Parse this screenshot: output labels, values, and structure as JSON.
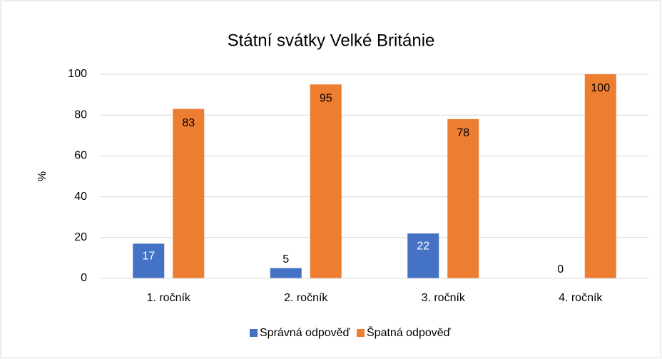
{
  "chart_data": {
    "type": "bar",
    "title": "Státní svátky Velké Británie",
    "y_label": "%",
    "categories": [
      "1. ročník",
      "2. ročník",
      "3. ročník",
      "4. ročník"
    ],
    "series": [
      {
        "name": "Správná odpověď",
        "color": "#4472c4",
        "values": [
          17,
          5,
          22,
          0
        ]
      },
      {
        "name": "Špatná odpověď",
        "color": "#ed7d31",
        "values": [
          83,
          95,
          78,
          100
        ]
      }
    ],
    "ylim": [
      0,
      100
    ],
    "yticks": [
      0,
      20,
      40,
      60,
      80,
      100
    ],
    "grid": true,
    "legend": "bottom"
  }
}
